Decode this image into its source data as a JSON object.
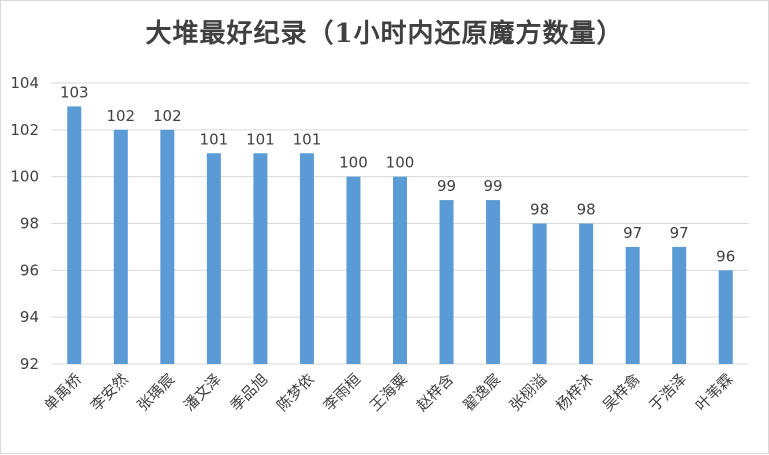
{
  "chart_data": {
    "type": "bar",
    "title": "大堆最好纪录（1小时内还原魔方数量）",
    "xlabel": "",
    "ylabel": "",
    "categories": [
      "单禹桥",
      "李安然",
      "张瑀宸",
      "潘文泽",
      "季品旭",
      "陈梦依",
      "李雨桓",
      "王海粟",
      "赵梓含",
      "翟逸宸",
      "张栩溢",
      "杨梓沐",
      "吴梓翕",
      "于浩泽",
      "叶苇霖"
    ],
    "values": [
      103,
      102,
      102,
      101,
      101,
      101,
      100,
      100,
      99,
      99,
      98,
      98,
      97,
      97,
      96
    ],
    "ylim": [
      92,
      104
    ],
    "yticks": [
      92,
      94,
      96,
      98,
      100,
      102,
      104
    ],
    "grid": true,
    "legend": "none",
    "bar_color": "#5b9bd5",
    "grid_color": "#d9d9d9"
  }
}
